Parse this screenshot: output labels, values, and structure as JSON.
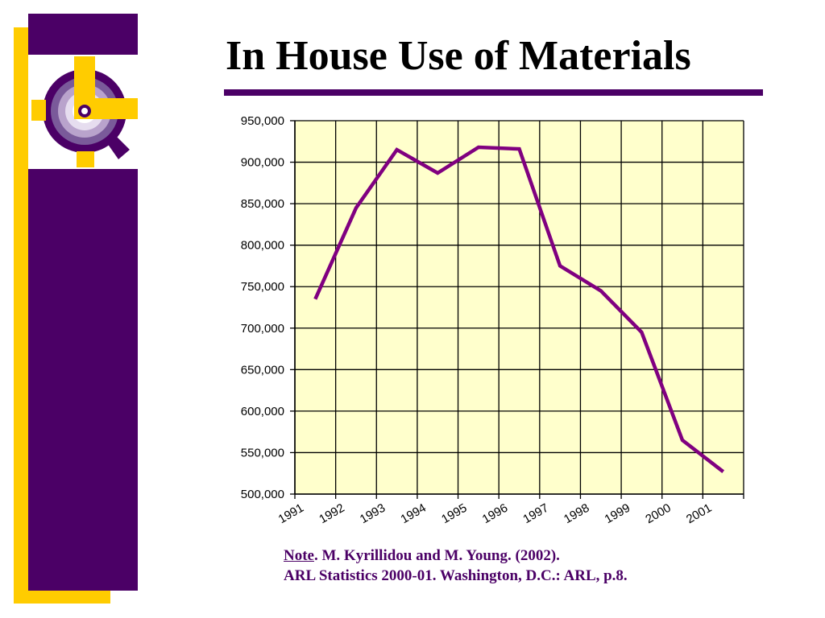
{
  "slide": {
    "title": "In House Use of Materials",
    "colors": {
      "purple": "#4b0066",
      "gold": "#ffcc00",
      "plot_background": "#ffffcc",
      "line": "#800080"
    },
    "logo_icon": "clock-gear-logo-icon"
  },
  "note": {
    "label": "Note",
    "line1_rest": ". M. Kyrillidou and M. Young. (2002).",
    "line2": "ARL Statistics 2000-01. Washington, D.C.: ARL, p.8."
  },
  "chart_data": {
    "type": "line",
    "title": "",
    "xlabel": "",
    "ylabel": "",
    "categories": [
      "1991",
      "1992",
      "1993",
      "1994",
      "1995",
      "1996",
      "1997",
      "1998",
      "1999",
      "2000",
      "2001"
    ],
    "series": [
      {
        "values": [
          735000,
          845000,
          915000,
          887000,
          918000,
          916000,
          775000,
          745000,
          695000,
          565000,
          527000
        ]
      }
    ],
    "ylim": [
      500000,
      950000
    ],
    "yticks": [
      500000,
      550000,
      600000,
      650000,
      700000,
      750000,
      800000,
      850000,
      900000,
      950000
    ],
    "ytick_labels": [
      "500,000",
      "550,000",
      "600,000",
      "650,000",
      "700,000",
      "750,000",
      "800,000",
      "850,000",
      "900,000",
      "950,000"
    ],
    "grid": true,
    "legend": "none"
  }
}
